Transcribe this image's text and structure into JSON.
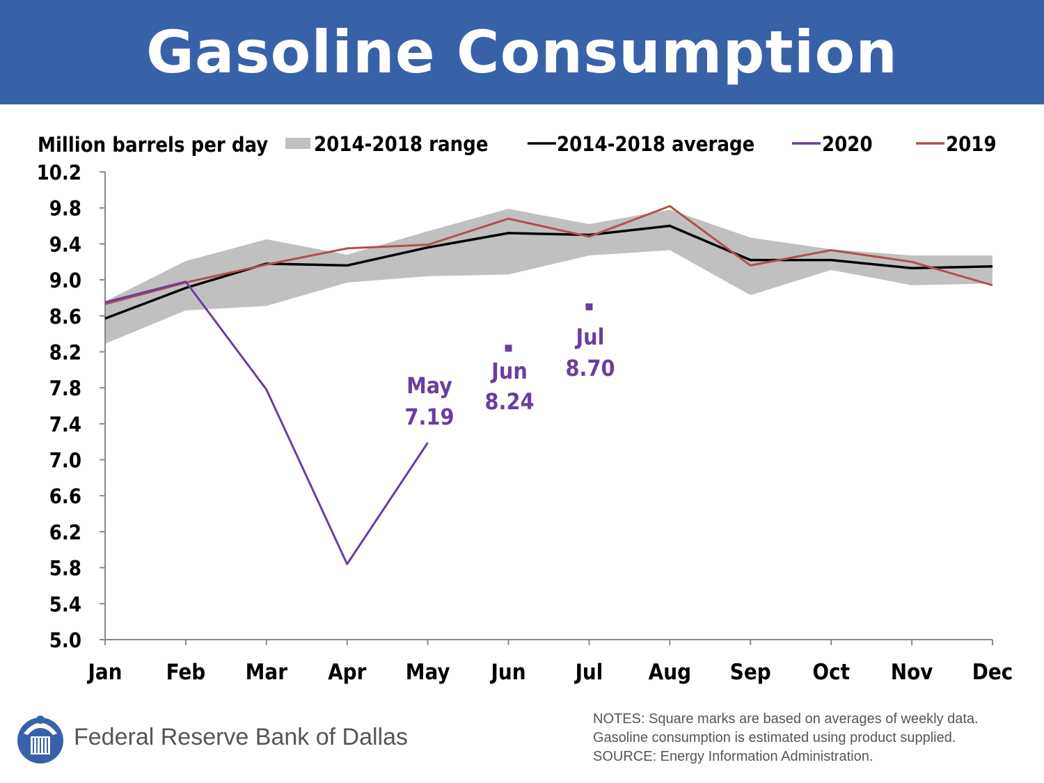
{
  "title": "Gasoline Consumption",
  "colors": {
    "banner": "#3862a8",
    "range": "#c0c0c0",
    "average": "#000000",
    "y2020": "#6a3d9e",
    "y2019": "#b0504a"
  },
  "chart_data": {
    "type": "line",
    "ylabel": "Million barrels per day",
    "ylim": [
      5.0,
      10.2
    ],
    "yticks": [
      "10.2",
      "9.8",
      "9.4",
      "9.0",
      "8.6",
      "8.2",
      "7.8",
      "7.4",
      "7.0",
      "6.6",
      "6.2",
      "5.8",
      "5.4",
      "5.0"
    ],
    "categories": [
      "Jan",
      "Feb",
      "Mar",
      "Apr",
      "May",
      "Jun",
      "Jul",
      "Aug",
      "Sep",
      "Oct",
      "Nov",
      "Dec"
    ],
    "legend": [
      {
        "key": "range",
        "label": "2014-2018 range"
      },
      {
        "key": "average",
        "label": "2014-2018 average"
      },
      {
        "key": "y2020",
        "label": "2020"
      },
      {
        "key": "y2019",
        "label": "2019"
      }
    ],
    "range_low": [
      8.29,
      8.66,
      8.71,
      8.97,
      9.04,
      9.06,
      9.27,
      9.33,
      8.83,
      9.11,
      8.94,
      8.96
    ],
    "range_high": [
      8.76,
      9.21,
      9.45,
      9.28,
      9.54,
      9.79,
      9.62,
      9.78,
      9.47,
      9.34,
      9.27,
      9.27
    ],
    "series": [
      {
        "name": "2014-2018 average",
        "key": "average",
        "values": [
          8.57,
          8.91,
          9.18,
          9.16,
          9.36,
          9.52,
          9.5,
          9.6,
          9.22,
          9.22,
          9.13,
          9.15
        ]
      },
      {
        "name": "2019",
        "key": "y2019",
        "values": [
          8.73,
          8.97,
          9.17,
          9.35,
          9.39,
          9.68,
          9.48,
          9.82,
          9.16,
          9.33,
          9.2,
          8.94
        ]
      },
      {
        "name": "2020",
        "key": "y2020",
        "values": [
          8.75,
          8.98,
          7.78,
          5.84,
          7.19,
          null,
          null,
          null,
          null,
          null,
          null,
          null
        ]
      }
    ],
    "square_marks": [
      {
        "month": "Jun",
        "value": 8.24
      },
      {
        "month": "Jul",
        "value": 8.7
      }
    ],
    "annotations": [
      {
        "month": "May",
        "line1": "May",
        "line2": "7.19"
      },
      {
        "month": "Jun",
        "line1": "Jun",
        "line2": "8.24"
      },
      {
        "month": "Jul",
        "line1": "Jul",
        "line2": "8.70"
      }
    ]
  },
  "footer": {
    "org": "Federal Reserve Bank of Dallas",
    "notes": [
      "NOTES: Square marks are based on averages of weekly data.",
      "Gasoline consumption is estimated using product supplied.",
      "SOURCE: Energy Information Administration."
    ]
  }
}
